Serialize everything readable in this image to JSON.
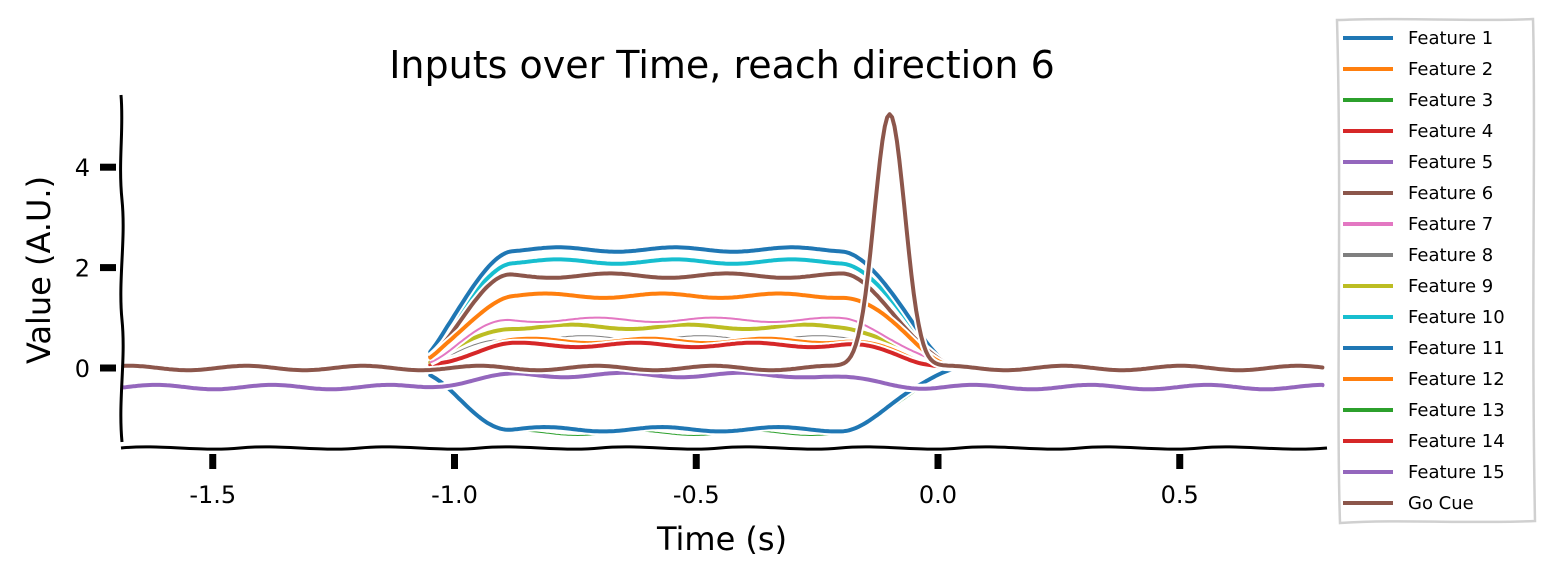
{
  "chart_data": {
    "type": "line",
    "title": "Inputs over Time, reach direction 6",
    "xlabel": "Time (s)",
    "ylabel": "Value (A.U.)",
    "xlim": [
      -1.69,
      0.8
    ],
    "ylim": [
      -1.58,
      5.46
    ],
    "xticks": [
      -1.5,
      -1.0,
      -0.5,
      0.0,
      0.5
    ],
    "xtick_labels": [
      "-1.5",
      "-1.0",
      "-0.5",
      "0.0",
      "0.5"
    ],
    "yticks": [
      0,
      2,
      4
    ],
    "ytick_labels": [
      "0",
      "2",
      "4"
    ],
    "grid": false,
    "style": "xkcd",
    "legend_position": "outside right",
    "shape_notes": "Features 1-14: zero before t≈-1.05, ramp to plateau by t≈-0.9, hold until t≈-0.18, decay back to ~0 by t≈0.05 (lines not drawn outside the window). Feature 5/15: baseline ≈ -0.38, slightly raised to ≈ -0.14 in window. Go Cue: baseline 0 with sharp peak ≈5.1 at t≈-0.1.",
    "series": [
      {
        "name": "Feature 1",
        "color": "#1f77b4",
        "plateau": 2.36,
        "width": 4
      },
      {
        "name": "Feature 2",
        "color": "#ff7f0e",
        "plateau": 1.44,
        "width": 4
      },
      {
        "name": "Feature 3",
        "color": "#2ca02c",
        "plateau": -1.3,
        "width": 1
      },
      {
        "name": "Feature 4",
        "color": "#d62728",
        "plateau": 0.46,
        "width": 4
      },
      {
        "name": "Feature 5",
        "color": "#9467bd",
        "baseline": -0.38,
        "plateau": -0.14,
        "width": 4
      },
      {
        "name": "Feature 6",
        "color": "#8c564b",
        "plateau": 1.84,
        "width": 4
      },
      {
        "name": "Feature 7",
        "color": "#e377c2",
        "plateau": 0.96,
        "width": 2
      },
      {
        "name": "Feature 8",
        "color": "#7f7f7f",
        "plateau": 0.6,
        "width": 1
      },
      {
        "name": "Feature 9",
        "color": "#bcbd22",
        "plateau": 0.82,
        "width": 4
      },
      {
        "name": "Feature 10",
        "color": "#17becf",
        "plateau": 2.12,
        "width": 4
      },
      {
        "name": "Feature 11",
        "color": "#1f77b4",
        "plateau": -1.22,
        "width": 4
      },
      {
        "name": "Feature 12",
        "color": "#ff7f0e",
        "plateau": 0.56,
        "width": 2
      },
      {
        "name": "Feature 13",
        "color": "#2ca02c",
        "plateau": -1.3,
        "width": 1
      },
      {
        "name": "Feature 14",
        "color": "#d62728",
        "plateau": 0.46,
        "width": 1
      },
      {
        "name": "Feature 15",
        "color": "#9467bd",
        "baseline": -0.38,
        "plateau": -0.14,
        "width": 4
      },
      {
        "name": "Go Cue",
        "color": "#8c564b",
        "baseline": 0.0,
        "peak": 5.1,
        "peak_time": -0.1,
        "width": 4
      }
    ],
    "legend": [
      "Feature 1",
      "Feature 2",
      "Feature 3",
      "Feature 4",
      "Feature 5",
      "Feature 6",
      "Feature 7",
      "Feature 8",
      "Feature 9",
      "Feature 10",
      "Feature 11",
      "Feature 12",
      "Feature 13",
      "Feature 14",
      "Feature 15",
      "Go Cue"
    ]
  }
}
